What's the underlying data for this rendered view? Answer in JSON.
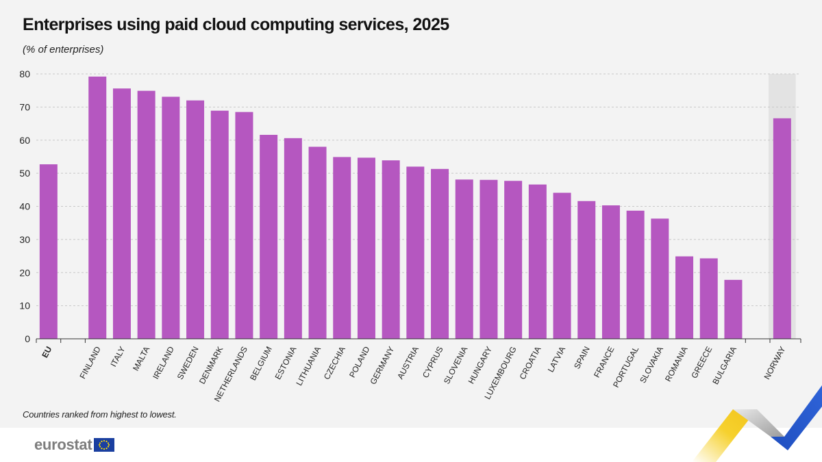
{
  "title": "Enterprises using paid cloud computing services, 2025",
  "subtitle": "(% of enterprises)",
  "footnote": "Countries ranked from highest to lowest.",
  "logo_text": "eurostat",
  "colors": {
    "bar": "#b557c0",
    "highlight_band": "#e3e3e3",
    "panel": "#f3f3f3",
    "grid": "#c8c8c8",
    "axis": "#333333"
  },
  "icons": {
    "logo_flag": "eu-flag-icon",
    "decoration": "chevron-stripes-decoration"
  },
  "chart_data": {
    "type": "bar",
    "categories": [
      "EU",
      "FINLAND",
      "ITALY",
      "MALTA",
      "IRELAND",
      "SWEDEN",
      "DENMARK",
      "NETHERLANDS",
      "BELGIUM",
      "ESTONIA",
      "LITHUANIA",
      "CZECHIA",
      "POLAND",
      "GERMANY",
      "AUSTRIA",
      "CYPRUS",
      "SLOVENIA",
      "HUNGARY",
      "LUXEMBOURG",
      "CROATIA",
      "LATVIA",
      "SPAIN",
      "FRANCE",
      "PORTUGAL",
      "SLOVAKIA",
      "ROMANIA",
      "GREECE",
      "BULGARIA",
      "NORWAY"
    ],
    "values": [
      52.7,
      79.2,
      75.6,
      74.9,
      73.1,
      72.0,
      68.9,
      68.5,
      61.6,
      60.6,
      58.0,
      54.9,
      54.7,
      53.9,
      52.0,
      51.3,
      48.1,
      48.0,
      47.7,
      46.6,
      44.1,
      41.6,
      40.3,
      38.7,
      36.3,
      24.9,
      24.3,
      17.8,
      66.6
    ],
    "groups": [
      "EU",
      "member",
      "member",
      "member",
      "member",
      "member",
      "member",
      "member",
      "member",
      "member",
      "member",
      "member",
      "member",
      "member",
      "member",
      "member",
      "member",
      "member",
      "member",
      "member",
      "member",
      "member",
      "member",
      "member",
      "member",
      "member",
      "member",
      "member",
      "EFTA"
    ],
    "bold_categories": [
      "EU"
    ],
    "highlighted_categories": [
      "NORWAY"
    ],
    "yticks": [
      0,
      10,
      20,
      30,
      40,
      50,
      60,
      70,
      80
    ],
    "ylim": [
      0,
      80
    ],
    "grid": true,
    "legend": "none"
  }
}
